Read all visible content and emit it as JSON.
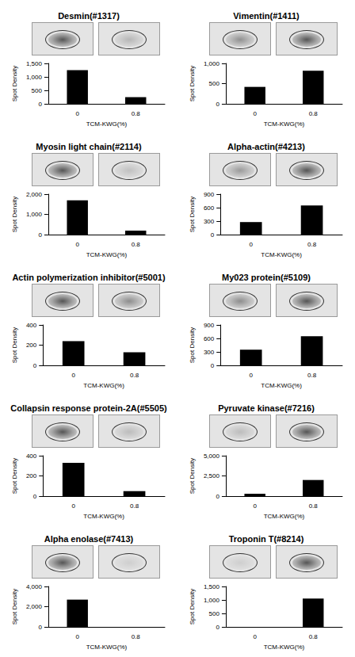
{
  "chart_data": [
    {
      "type": "bar",
      "title": "Desmin(#1317)",
      "categories": [
        "0",
        "0.8"
      ],
      "values": [
        1250,
        250
      ],
      "color": "#000000",
      "x_label": "TCM-KWG(%)",
      "y_label": "Spot Density",
      "ylim": [
        0,
        1500
      ],
      "yticks": [
        0,
        500,
        1000,
        1500
      ],
      "grid": false
    },
    {
      "type": "bar",
      "title": "Vimentin(#1411)",
      "categories": [
        "0",
        "0.8"
      ],
      "values": [
        420,
        820
      ],
      "color": "#000000",
      "x_label": "TCM-KWG(%)",
      "y_label": "Spot Density",
      "ylim": [
        0,
        1000
      ],
      "yticks": [
        0,
        500,
        1000
      ],
      "grid": false
    },
    {
      "type": "bar",
      "title": "Myosin light chain(#2114)",
      "categories": [
        "0",
        "0.8"
      ],
      "values": [
        1700,
        200
      ],
      "color": "#000000",
      "x_label": "TCM-KWG(%)",
      "y_label": "Spot Density",
      "ylim": [
        0,
        2000
      ],
      "yticks": [
        0,
        1000,
        2000
      ],
      "grid": false
    },
    {
      "type": "bar",
      "title": "Alpha-actin(#4213)",
      "categories": [
        "0",
        "0.8"
      ],
      "values": [
        280,
        650
      ],
      "color": "#000000",
      "x_label": "TCM-KWG(%)",
      "y_label": "Spot Density",
      "ylim": [
        0,
        900
      ],
      "yticks": [
        0,
        300,
        600,
        900
      ],
      "grid": false
    },
    {
      "type": "bar",
      "title": "Actin polymerization inhibitor(#5001)",
      "categories": [
        "0",
        "0.8"
      ],
      "values": [
        240,
        130
      ],
      "color": "#000000",
      "x_label": "TCM-KWG(%)",
      "y_label": "Spot Density",
      "ylim": [
        0,
        400
      ],
      "yticks": [
        0,
        200,
        400
      ],
      "grid": false
    },
    {
      "type": "bar",
      "title": "My023 protein(#5109)",
      "categories": [
        "0",
        "0.8"
      ],
      "values": [
        350,
        650
      ],
      "color": "#000000",
      "x_label": "TCM-KWG(%)",
      "y_label": "Spot Density",
      "ylim": [
        0,
        900
      ],
      "yticks": [
        0,
        300,
        600,
        900
      ],
      "grid": false
    },
    {
      "type": "bar",
      "title": "Collapsin response protein-2A(#5505)",
      "categories": [
        "0",
        "0.8"
      ],
      "values": [
        330,
        50
      ],
      "color": "#000000",
      "x_label": "TCM-KWG(%)",
      "y_label": "Spot Density",
      "ylim": [
        0,
        400
      ],
      "yticks": [
        0,
        200,
        400
      ],
      "grid": false
    },
    {
      "type": "bar",
      "title": "Pyruvate kinase(#7216)",
      "categories": [
        "0",
        "0.8"
      ],
      "values": [
        300,
        2000
      ],
      "color": "#000000",
      "x_label": "TCM-KWG(%)",
      "y_label": "Spot Density",
      "ylim": [
        0,
        5000
      ],
      "yticks": [
        0,
        2500,
        5000
      ],
      "grid": false
    },
    {
      "type": "bar",
      "title": "Alpha enolase(#7413)",
      "categories": [
        "0",
        "0.8"
      ],
      "values": [
        2700,
        0
      ],
      "color": "#000000",
      "x_label": "TCM-KWG(%)",
      "y_label": "Spot Density",
      "ylim": [
        0,
        4000
      ],
      "yticks": [
        0,
        2000,
        4000
      ],
      "grid": false
    },
    {
      "type": "bar",
      "title": "Troponin T(#8214)",
      "categories": [
        "0",
        "0.8"
      ],
      "values": [
        0,
        1050
      ],
      "color": "#000000",
      "x_label": "TCM-KWG(%)",
      "y_label": "Spot Density",
      "ylim": [
        0,
        1500
      ],
      "yticks": [
        0,
        500,
        1000,
        1500
      ],
      "grid": false
    }
  ]
}
